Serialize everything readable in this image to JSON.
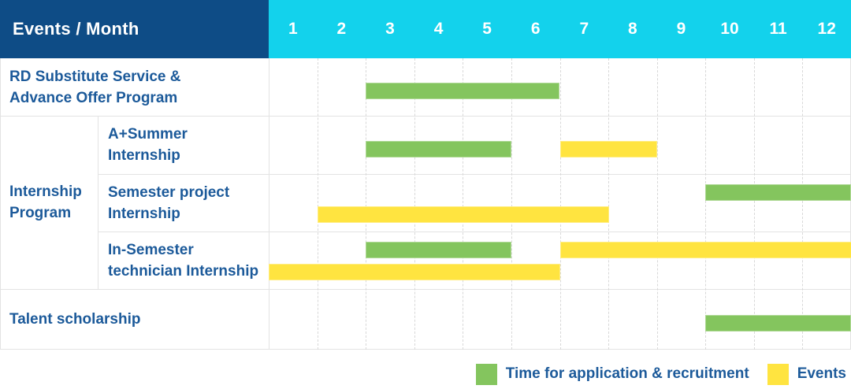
{
  "header": {
    "events_month_label": "Events / Month",
    "months": [
      "1",
      "2",
      "3",
      "4",
      "5",
      "6",
      "7",
      "8",
      "9",
      "10",
      "11",
      "12"
    ]
  },
  "labels": {
    "rd": [
      "RD Substitute Service &",
      "Advance Offer Program"
    ],
    "group": [
      "Internship",
      "Program"
    ],
    "a_summer": [
      "A+Summer",
      "Internship"
    ],
    "semester_project": [
      "Semester project",
      "Internship"
    ],
    "in_semester": [
      "In-Semester",
      "technician Internship"
    ],
    "talent": [
      "Talent scholarship"
    ]
  },
  "legend": {
    "recruitment": "Time for application & recruitment",
    "events": "Events"
  },
  "colors": {
    "header_bg": "#0e4c86",
    "months_bg": "#13d2ec",
    "header_text": "#ffffff",
    "label_text": "#1c5a9a",
    "recruitment": "#84c55e",
    "event": "#ffe440",
    "grid_dashed": "#d8d8d8",
    "grid_solid": "#e3e3e3"
  },
  "chart_data": {
    "type": "gantt",
    "x_unit": "month",
    "x_ticks": [
      "1",
      "2",
      "3",
      "4",
      "5",
      "6",
      "7",
      "8",
      "9",
      "10",
      "11",
      "12"
    ],
    "x_range": [
      1,
      12
    ],
    "legend": [
      {
        "kind": "recruitment",
        "label": "Time for application & recruitment",
        "color": "#84c55e"
      },
      {
        "kind": "event",
        "label": "Events",
        "color": "#ffe440"
      }
    ],
    "rows": [
      {
        "label": "RD Substitute Service & Advance Offer Program",
        "group": null,
        "bars": [
          {
            "kind": "recruitment",
            "start_month": 3,
            "end_month": 6,
            "line": "single"
          }
        ]
      },
      {
        "label": "A+Summer Internship",
        "group": "Internship Program",
        "bars": [
          {
            "kind": "recruitment",
            "start_month": 3,
            "end_month": 5,
            "line": "single"
          },
          {
            "kind": "event",
            "start_month": 7,
            "end_month": 8,
            "line": "single"
          }
        ]
      },
      {
        "label": "Semester project Internship",
        "group": "Internship Program",
        "bars": [
          {
            "kind": "recruitment",
            "start_month": 10,
            "end_month": 12,
            "line": "upper"
          },
          {
            "kind": "event",
            "start_month": 2,
            "end_month": 7,
            "line": "lower"
          }
        ]
      },
      {
        "label": "In-Semester technician Internship",
        "group": "Internship Program",
        "bars": [
          {
            "kind": "recruitment",
            "start_month": 3,
            "end_month": 5,
            "line": "upper"
          },
          {
            "kind": "event",
            "start_month": 7,
            "end_month": 12,
            "line": "upper"
          },
          {
            "kind": "event",
            "start_month": 1,
            "end_month": 6,
            "line": "lower"
          }
        ]
      },
      {
        "label": "Talent scholarship",
        "group": null,
        "bars": [
          {
            "kind": "recruitment",
            "start_month": 10,
            "end_month": 12,
            "line": "single"
          }
        ]
      }
    ]
  }
}
